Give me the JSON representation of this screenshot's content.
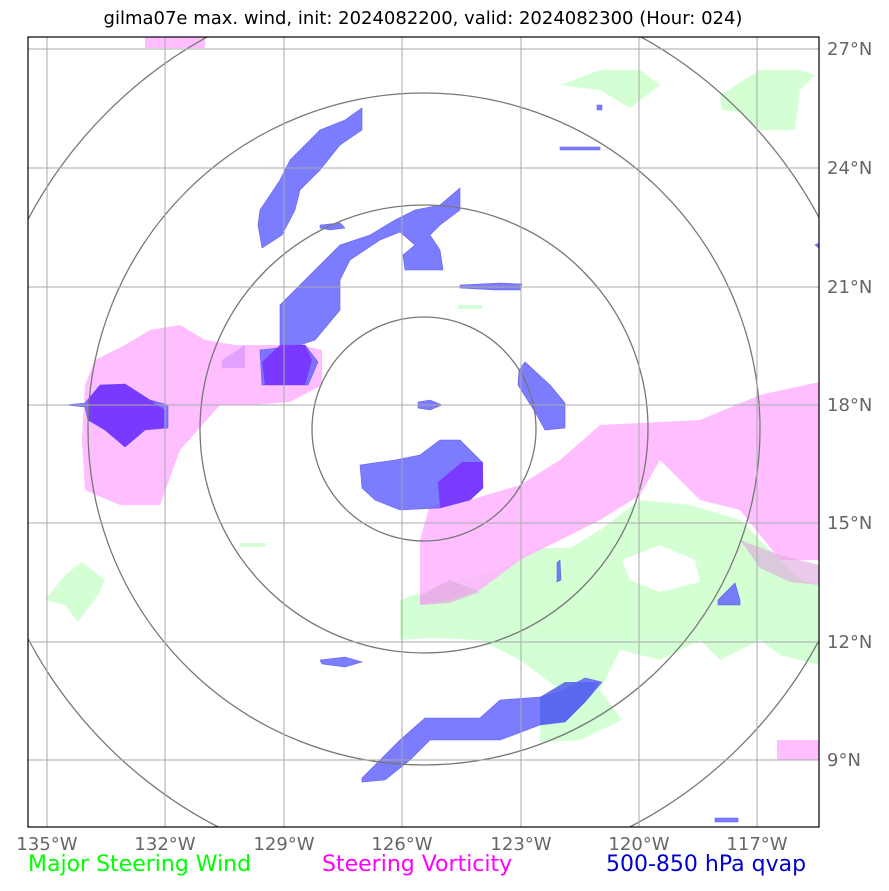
{
  "title": "gilma07e max. wind, init: 2024082200, valid: 2024082300 (Hour: 024)",
  "lon_ticks": [
    "135°W",
    "132°W",
    "129°W",
    "126°W",
    "123°W",
    "120°W",
    "117°W"
  ],
  "lat_ticks": [
    "27°N",
    "24°N",
    "21°N",
    "18°N",
    "15°N",
    "12°N",
    "9°N"
  ],
  "legend": {
    "wind": {
      "label": "Major Steering Wind",
      "color": "#00ff00"
    },
    "vorticity": {
      "label": "Steering Vorticity",
      "color": "#ff00ff"
    },
    "qvap": {
      "label": "500-850 hPa qvap",
      "color": "#0000cc"
    }
  },
  "colors": {
    "wind_fill": "#ccffcc",
    "vorticity_fill": "#ffb3ff",
    "qvap_fill": "#6666ff",
    "overlap_fill": "#7a33ff",
    "grid": "#aaaaaa",
    "range_rings": "#777777"
  }
}
